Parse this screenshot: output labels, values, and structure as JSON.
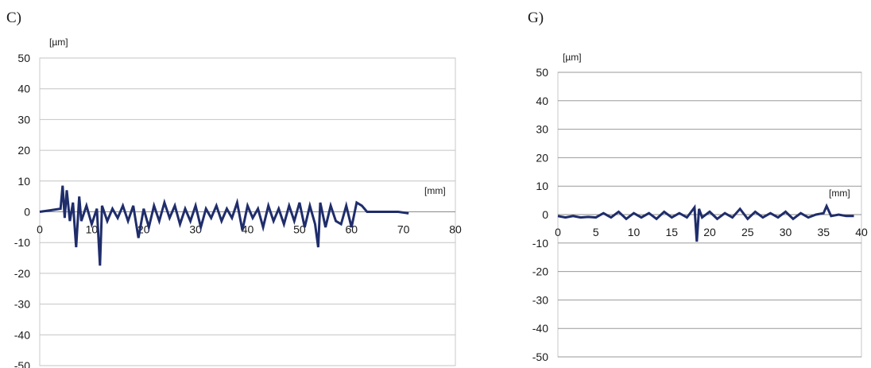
{
  "panels": {
    "left": {
      "label": "C)"
    },
    "right": {
      "label": "G)"
    }
  },
  "chart_data": [
    {
      "type": "line",
      "panel": "C)",
      "ylabel": "[µm]",
      "xlabel": "[mm]",
      "ylim": [
        -50,
        50
      ],
      "xlim": [
        0,
        80
      ],
      "yticks": [
        50,
        40,
        30,
        20,
        10,
        0,
        -10,
        -20,
        -30,
        -40,
        -50
      ],
      "xticks": [
        0,
        10,
        20,
        30,
        40,
        50,
        60,
        70,
        80
      ],
      "grid": true,
      "series_color": "#1f2d6b",
      "series": [
        {
          "x": [
            0,
            2,
            4,
            4.4,
            4.8,
            5.2,
            5.8,
            6.4,
            7,
            7.6,
            8,
            9,
            10,
            11,
            11.6,
            12,
            13,
            14,
            15,
            16,
            17,
            18,
            19,
            20,
            21,
            22,
            23,
            24,
            25,
            26,
            27,
            28,
            29,
            30,
            31,
            32,
            33,
            34,
            35,
            36,
            37,
            38,
            39,
            40,
            41,
            42,
            43,
            44,
            45,
            46,
            47,
            48,
            49,
            50,
            51,
            52,
            53,
            53.6,
            54,
            55,
            56,
            57,
            58,
            59,
            60,
            61,
            62,
            63,
            65,
            67,
            69,
            71
          ],
          "y": [
            0,
            0.5,
            1,
            8.5,
            -2,
            7,
            -3,
            3,
            -11.5,
            5,
            -3,
            2,
            -4,
            1,
            -17.5,
            2,
            -3,
            1,
            -2,
            2,
            -3,
            2,
            -8.5,
            1,
            -5,
            2,
            -3,
            3,
            -2,
            2,
            -4,
            1,
            -3,
            2,
            -5,
            1,
            -2,
            2,
            -3,
            1,
            -2,
            3,
            -6,
            2,
            -2,
            1,
            -5,
            2,
            -3,
            1,
            -4,
            2,
            -3,
            3,
            -5,
            2,
            -4,
            -11.5,
            3,
            -5,
            2,
            -3,
            -4,
            2,
            -5,
            3,
            2,
            0,
            0,
            0,
            0,
            -0.5
          ]
        }
      ]
    },
    {
      "type": "line",
      "panel": "G)",
      "ylabel": "[µm]",
      "xlabel": "[mm]",
      "ylim": [
        -50,
        50
      ],
      "xlim": [
        0,
        40
      ],
      "yticks": [
        50,
        40,
        30,
        20,
        10,
        0,
        -10,
        -20,
        -30,
        -40,
        -50
      ],
      "xticks": [
        0,
        5,
        10,
        15,
        20,
        25,
        30,
        35,
        40
      ],
      "grid": true,
      "series_color": "#1f2d6b",
      "series": [
        {
          "x": [
            0,
            1,
            2,
            3,
            4,
            5,
            6,
            7,
            8,
            9,
            10,
            11,
            12,
            13,
            14,
            15,
            16,
            17,
            18,
            18.3,
            18.6,
            19,
            20,
            21,
            22,
            23,
            24,
            25,
            26,
            27,
            28,
            29,
            30,
            31,
            32,
            33,
            34,
            35,
            35.4,
            36,
            37,
            38,
            39
          ],
          "y": [
            -0.5,
            -1,
            -0.5,
            -1,
            -0.8,
            -1,
            0.5,
            -1,
            1,
            -1.5,
            0.5,
            -1,
            0.5,
            -1.5,
            1,
            -1,
            0.5,
            -1,
            2.5,
            -9.5,
            2,
            -1,
            1,
            -1.5,
            0.5,
            -1,
            2,
            -1.5,
            1,
            -1,
            0.5,
            -1,
            1,
            -1.5,
            0.5,
            -1,
            0,
            0.5,
            3,
            -0.5,
            0,
            -0.5,
            -0.5
          ]
        }
      ]
    }
  ]
}
